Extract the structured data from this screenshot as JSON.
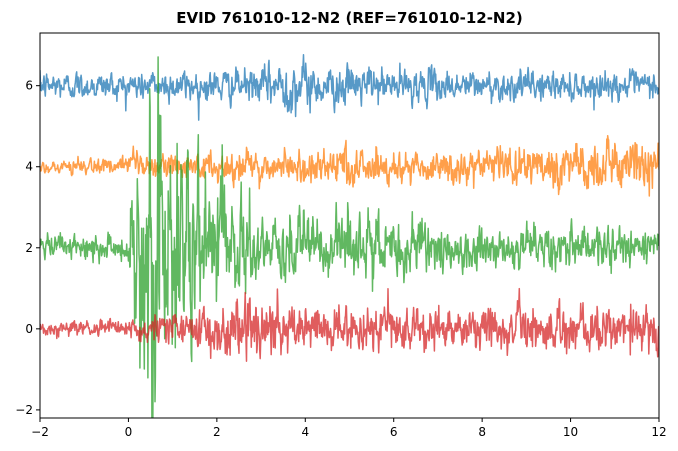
{
  "chart_data": {
    "type": "line",
    "title": "EVID 761010-12-N2 (REF=761010-12-N2)",
    "xlabel": "",
    "ylabel": "",
    "xlim": [
      -2,
      12
    ],
    "ylim": [
      -2.2,
      7.3
    ],
    "grid": false,
    "legend": "none",
    "x_ticks": [
      "−2",
      "0",
      "2",
      "4",
      "6",
      "8",
      "10",
      "12"
    ],
    "y_ticks": [
      "−2",
      "0",
      "2",
      "4",
      "6"
    ],
    "series": [
      {
        "color": "#1f77b4",
        "offset": 6,
        "envelope": [
          {
            "x": -2,
            "amp": 0.28
          },
          {
            "x": 0,
            "amp": 0.3
          },
          {
            "x": 3,
            "amp": 0.35
          },
          {
            "x": 3.6,
            "amp": 0.6
          },
          {
            "x": 4.2,
            "amp": 0.45
          },
          {
            "x": 6,
            "amp": 0.35
          },
          {
            "x": 9,
            "amp": 0.3
          },
          {
            "x": 12,
            "amp": 0.28
          }
        ]
      },
      {
        "color": "#ff7f0e",
        "offset": 4,
        "envelope": [
          {
            "x": -2,
            "amp": 0.12
          },
          {
            "x": -0.5,
            "amp": 0.2
          },
          {
            "x": 1,
            "amp": 0.3
          },
          {
            "x": 4,
            "amp": 0.35
          },
          {
            "x": 8,
            "amp": 0.38
          },
          {
            "x": 10,
            "amp": 0.5
          },
          {
            "x": 12,
            "amp": 0.55
          }
        ]
      },
      {
        "color": "#2ca02c",
        "offset": 2,
        "envelope": [
          {
            "x": -2,
            "amp": 0.25
          },
          {
            "x": 0,
            "amp": 0.3
          },
          {
            "x": 0.2,
            "amp": 2.5
          },
          {
            "x": 0.5,
            "amp": 3.6
          },
          {
            "x": 1.0,
            "amp": 2.4
          },
          {
            "x": 2.0,
            "amp": 1.6
          },
          {
            "x": 3.0,
            "amp": 0.8
          },
          {
            "x": 5.5,
            "amp": 0.7
          },
          {
            "x": 7.0,
            "amp": 0.45
          },
          {
            "x": 12,
            "amp": 0.4
          }
        ]
      },
      {
        "color": "#d62728",
        "offset": 0,
        "envelope": [
          {
            "x": -2,
            "amp": 0.15
          },
          {
            "x": 0,
            "amp": 0.2
          },
          {
            "x": 1.5,
            "amp": 0.4
          },
          {
            "x": 2.7,
            "amp": 0.85
          },
          {
            "x": 3.5,
            "amp": 0.5
          },
          {
            "x": 7,
            "amp": 0.45
          },
          {
            "x": 11,
            "amp": 0.5
          },
          {
            "x": 12,
            "amp": 0.55
          }
        ]
      }
    ]
  }
}
